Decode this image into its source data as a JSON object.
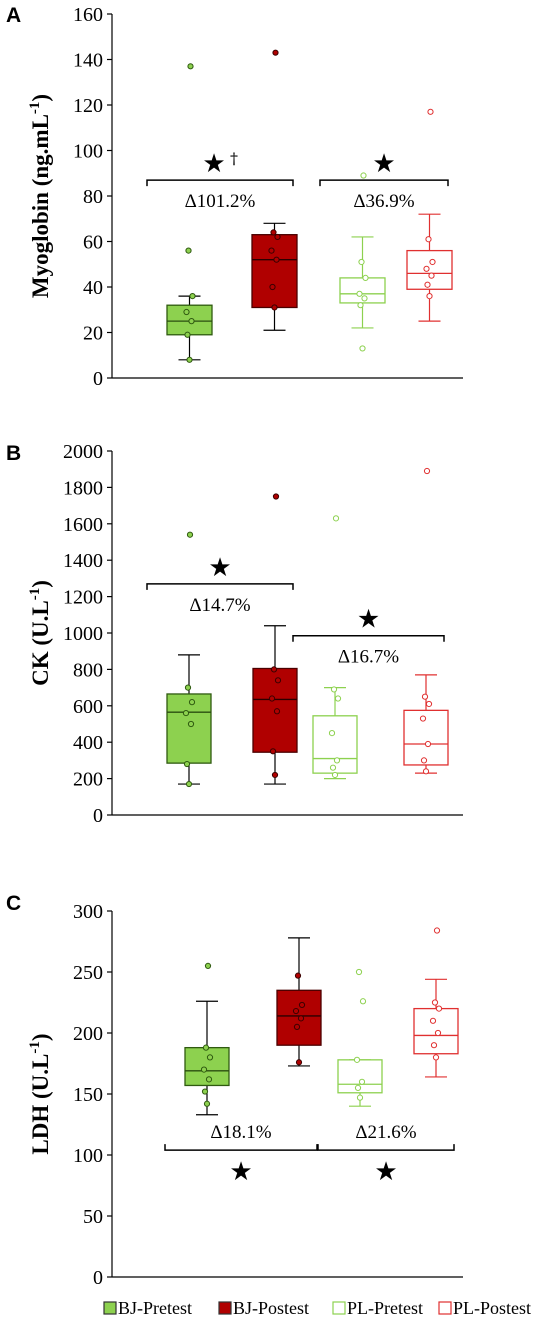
{
  "legend": [
    {
      "label": "BJ-Pretest",
      "color": "#8dd14f",
      "filled": true
    },
    {
      "label": "BJ-Postest",
      "color": "#b00000",
      "filled": true
    },
    {
      "label": "PL-Pretest",
      "color": "#8dd14f",
      "filled": false
    },
    {
      "label": "PL-Postest",
      "color": "#e03030",
      "filled": false
    }
  ],
  "chart_data": [
    {
      "type": "box",
      "panel": "A",
      "ylabel": "Myoglobin (ng.mL",
      "ylabel_sup": "-1",
      "ylabel_close": ")",
      "ylim": [
        0,
        160
      ],
      "yticks": [
        0,
        20,
        40,
        60,
        80,
        100,
        120,
        140,
        160
      ],
      "groups": [
        {
          "name": "BJ-Pretest",
          "whisker_low": 8,
          "q1": 19,
          "median": 25,
          "q3": 32,
          "whisker_high": 36,
          "points": [
            8,
            19,
            25,
            29,
            36,
            56,
            137
          ]
        },
        {
          "name": "BJ-Postest",
          "whisker_low": 21,
          "q1": 31,
          "median": 52,
          "q3": 63,
          "whisker_high": 68,
          "points": [
            31,
            40,
            52,
            56,
            62,
            64,
            143
          ]
        },
        {
          "name": "PL-Pretest",
          "whisker_low": 22,
          "q1": 33,
          "median": 37,
          "q3": 44,
          "whisker_high": 62,
          "points": [
            13,
            32,
            35,
            37,
            44,
            51,
            89
          ]
        },
        {
          "name": "PL-Postest",
          "whisker_low": 25,
          "q1": 39,
          "median": 46,
          "q3": 56,
          "whisker_high": 72,
          "points": [
            36,
            41,
            45,
            48,
            51,
            61,
            117
          ]
        }
      ],
      "annotations": [
        {
          "text": "Δ101.2%",
          "star": "★",
          "dagger": "†",
          "pair": [
            0,
            1
          ],
          "bracket_value": 87,
          "position": "above"
        },
        {
          "text": "Δ36.9%",
          "star": "★",
          "dagger": "",
          "pair": [
            2,
            3
          ],
          "bracket_value": 87,
          "position": "above"
        }
      ]
    },
    {
      "type": "box",
      "panel": "B",
      "ylabel": "CK (U.L",
      "ylabel_sup": "-1",
      "ylabel_close": ")",
      "ylim": [
        0,
        2000
      ],
      "yticks": [
        0,
        200,
        400,
        600,
        800,
        1000,
        1200,
        1400,
        1600,
        1800,
        2000
      ],
      "groups": [
        {
          "name": "BJ-Pretest",
          "whisker_low": 170,
          "q1": 285,
          "median": 565,
          "q3": 665,
          "whisker_high": 880,
          "points": [
            170,
            280,
            500,
            560,
            620,
            700,
            1540
          ]
        },
        {
          "name": "BJ-Postest",
          "whisker_low": 170,
          "q1": 345,
          "median": 635,
          "q3": 805,
          "whisker_high": 1040,
          "points": [
            220,
            350,
            570,
            640,
            740,
            800,
            1750
          ]
        },
        {
          "name": "PL-Pretest",
          "whisker_low": 200,
          "q1": 230,
          "median": 310,
          "q3": 545,
          "whisker_high": 700,
          "points": [
            220,
            260,
            300,
            450,
            640,
            690,
            1630
          ]
        },
        {
          "name": "PL-Postest",
          "whisker_low": 230,
          "q1": 275,
          "median": 390,
          "q3": 575,
          "whisker_high": 770,
          "points": [
            240,
            300,
            390,
            530,
            610,
            650,
            1890
          ]
        }
      ],
      "annotations": [
        {
          "text": "Δ14.7%",
          "star": "★",
          "dagger": "",
          "pair": [
            0,
            1
          ],
          "bracket_value": 1270,
          "position": "above"
        },
        {
          "text": "Δ16.7%",
          "star": "★",
          "dagger": "",
          "pair": [
            2,
            3
          ],
          "bracket_value": 985,
          "position": "above"
        }
      ]
    },
    {
      "type": "box",
      "panel": "C",
      "ylabel": "LDH (U.L",
      "ylabel_sup": "-1",
      "ylabel_close": ")",
      "ylim": [
        0,
        300
      ],
      "yticks": [
        0,
        50,
        100,
        150,
        200,
        250,
        300
      ],
      "groups": [
        {
          "name": "BJ-Pretest",
          "whisker_low": 133,
          "q1": 157,
          "median": 169,
          "q3": 188,
          "whisker_high": 226,
          "points": [
            142,
            152,
            162,
            170,
            180,
            188,
            255
          ]
        },
        {
          "name": "BJ-Postest",
          "whisker_low": 173,
          "q1": 190,
          "median": 214,
          "q3": 235,
          "whisker_high": 278,
          "points": [
            176,
            205,
            212,
            218,
            223,
            247
          ]
        },
        {
          "name": "PL-Pretest",
          "whisker_low": 140,
          "q1": 151,
          "median": 158,
          "q3": 178,
          "whisker_high": 178,
          "points": [
            147,
            155,
            160,
            178,
            226,
            250
          ]
        },
        {
          "name": "PL-Postest",
          "whisker_low": 164,
          "q1": 183,
          "median": 198,
          "q3": 220,
          "whisker_high": 244,
          "points": [
            180,
            190,
            200,
            210,
            220,
            225,
            284
          ]
        }
      ],
      "annotations": [
        {
          "text": "Δ18.1%",
          "star": "★",
          "dagger": "",
          "pair": [
            0,
            1
          ],
          "bracket_value": 104,
          "position": "below"
        },
        {
          "text": "Δ21.6%",
          "star": "★",
          "dagger": "",
          "pair": [
            2,
            3
          ],
          "bracket_value": 104,
          "position": "below"
        }
      ]
    }
  ]
}
